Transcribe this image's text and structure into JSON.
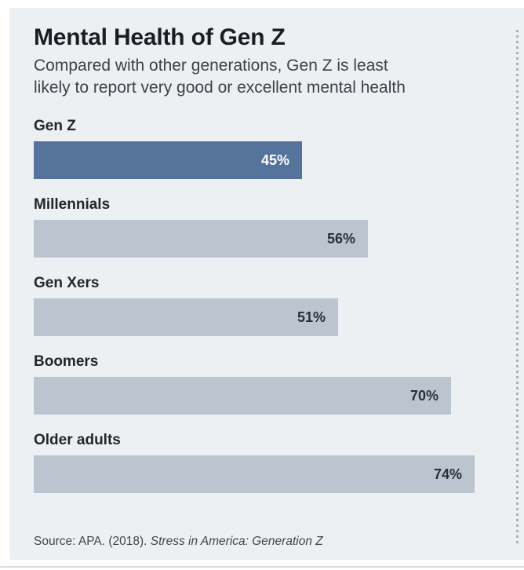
{
  "page": {
    "title": "Mental Health of Gen Z",
    "subtitle_line1": "Compared with other generations, Gen Z is least",
    "subtitle_line2": "likely to report very good or excellent mental health",
    "source_prefix": "Source: APA. (2018). ",
    "source_citation": "Stress in America: Generation Z"
  },
  "colors": {
    "card_background": "#edf0f2",
    "accent_bar": "#56749b",
    "light_bar": "#bbc4cf",
    "value_on_accent": "#ffffff",
    "value_on_light": "#2b3037",
    "dotted_line": "#a9b1b9"
  },
  "chart_data": {
    "type": "bar",
    "orientation": "horizontal",
    "title": "Mental Health of Gen Z",
    "subtitle": "Compared with other generations, Gen Z is least likely to report very good or excellent mental health",
    "categories": [
      "Gen Z",
      "Millennials",
      "Gen Xers",
      "Boomers",
      "Older adults"
    ],
    "values": [
      45,
      56,
      51,
      70,
      74
    ],
    "value_labels": [
      "45%",
      "56%",
      "51%",
      "70%",
      "74%"
    ],
    "unit": "%",
    "xlim": [
      0,
      100
    ],
    "highlighted_category": "Gen Z",
    "grid": false,
    "legend": false,
    "value_label_position": "inside-end",
    "source": "Source: APA. (2018). Stress in America: Generation Z"
  }
}
